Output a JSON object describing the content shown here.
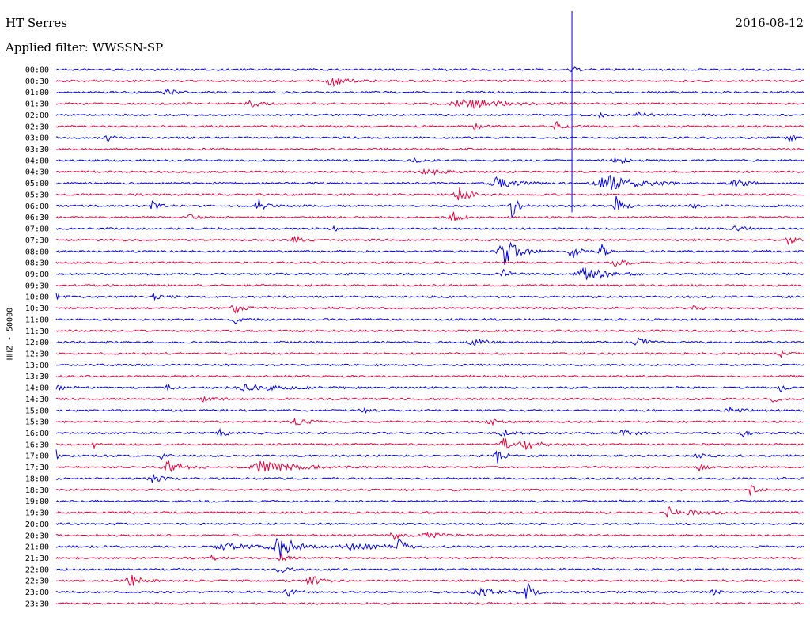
{
  "header": {
    "station": "HT Serres",
    "filter": "Applied filter: WWSSN-SP",
    "date": "2016-08-12"
  },
  "colors": {
    "blue": "#0000e6",
    "red": "#e8003c",
    "marker": "#0000e6"
  },
  "chart_data": {
    "type": "line",
    "title": "HT Serres",
    "subtitle": "Applied filter: WWSSN-SP",
    "date": "2016-08-12",
    "ylabel": "HHZ - 50000",
    "xlabel": "",
    "row_interval_minutes": 30,
    "row_labels": [
      "00:00",
      "00:30",
      "01:00",
      "01:30",
      "02:00",
      "02:30",
      "03:00",
      "03:30",
      "04:00",
      "04:30",
      "05:00",
      "05:30",
      "06:00",
      "06:30",
      "07:00",
      "07:30",
      "08:00",
      "08:30",
      "09:00",
      "09:30",
      "10:00",
      "10:30",
      "11:00",
      "11:30",
      "12:00",
      "12:30",
      "13:00",
      "13:30",
      "14:00",
      "14:30",
      "15:00",
      "15:30",
      "16:00",
      "16:30",
      "17:00",
      "17:30",
      "18:00",
      "18:30",
      "19:00",
      "19:30",
      "20:00",
      "20:30",
      "21:00",
      "21:30",
      "22:00",
      "22:30",
      "23:00",
      "23:30"
    ],
    "row_colors": [
      "blue",
      "red"
    ],
    "marker_fraction": 0.69,
    "marker_rows": [
      0,
      12
    ],
    "bursts": [
      {
        "row": 0,
        "pos": 0.69,
        "amp": 4,
        "width": 0.005
      },
      {
        "row": 1,
        "pos": 0.37,
        "amp": 7,
        "width": 0.012
      },
      {
        "row": 2,
        "pos": 0.15,
        "amp": 4,
        "width": 0.008
      },
      {
        "row": 3,
        "pos": 0.26,
        "amp": 4,
        "width": 0.01
      },
      {
        "row": 3,
        "pos": 0.55,
        "amp": 6,
        "width": 0.03
      },
      {
        "row": 4,
        "pos": 0.73,
        "amp": 3,
        "width": 0.01
      },
      {
        "row": 4,
        "pos": 0.78,
        "amp": 3,
        "width": 0.008
      },
      {
        "row": 5,
        "pos": 0.56,
        "amp": 4,
        "width": 0.006
      },
      {
        "row": 5,
        "pos": 0.67,
        "amp": 5,
        "width": 0.006
      },
      {
        "row": 6,
        "pos": 0.07,
        "amp": 3,
        "width": 0.006
      },
      {
        "row": 6,
        "pos": 0.98,
        "amp": 4,
        "width": 0.006
      },
      {
        "row": 8,
        "pos": 0.48,
        "amp": 3,
        "width": 0.006
      },
      {
        "row": 8,
        "pos": 0.75,
        "amp": 4,
        "width": 0.01
      },
      {
        "row": 9,
        "pos": 0.5,
        "amp": 3,
        "width": 0.02
      },
      {
        "row": 10,
        "pos": 0.59,
        "amp": 7,
        "width": 0.015
      },
      {
        "row": 10,
        "pos": 0.74,
        "amp": 10,
        "width": 0.025
      },
      {
        "row": 10,
        "pos": 0.91,
        "amp": 5,
        "width": 0.01
      },
      {
        "row": 11,
        "pos": 0.54,
        "amp": 9,
        "width": 0.01
      },
      {
        "row": 12,
        "pos": 0.13,
        "amp": 6,
        "width": 0.006
      },
      {
        "row": 12,
        "pos": 0.27,
        "amp": 10,
        "width": 0.006
      },
      {
        "row": 12,
        "pos": 0.61,
        "amp": 14,
        "width": 0.006
      },
      {
        "row": 12,
        "pos": 0.75,
        "amp": 12,
        "width": 0.006
      },
      {
        "row": 12,
        "pos": 0.85,
        "amp": 5,
        "width": 0.004
      },
      {
        "row": 13,
        "pos": 0.18,
        "amp": 4,
        "width": 0.006
      },
      {
        "row": 13,
        "pos": 0.53,
        "amp": 7,
        "width": 0.008
      },
      {
        "row": 14,
        "pos": 0.37,
        "amp": 4,
        "width": 0.005
      },
      {
        "row": 14,
        "pos": 0.91,
        "amp": 4,
        "width": 0.01
      },
      {
        "row": 15,
        "pos": 0.32,
        "amp": 6,
        "width": 0.006
      },
      {
        "row": 15,
        "pos": 0.98,
        "amp": 5,
        "width": 0.006
      },
      {
        "row": 16,
        "pos": 0.6,
        "amp": 20,
        "width": 0.012
      },
      {
        "row": 16,
        "pos": 0.69,
        "amp": 10,
        "width": 0.006
      },
      {
        "row": 16,
        "pos": 0.73,
        "amp": 8,
        "width": 0.006
      },
      {
        "row": 17,
        "pos": 0.75,
        "amp": 4,
        "width": 0.01
      },
      {
        "row": 18,
        "pos": 0.6,
        "amp": 6,
        "width": 0.006
      },
      {
        "row": 18,
        "pos": 0.71,
        "amp": 8,
        "width": 0.02
      },
      {
        "row": 20,
        "pos": 0.0,
        "amp": 4,
        "width": 0.005
      },
      {
        "row": 20,
        "pos": 0.13,
        "amp": 4,
        "width": 0.008
      },
      {
        "row": 21,
        "pos": 0.24,
        "amp": 6,
        "width": 0.008
      },
      {
        "row": 21,
        "pos": 0.85,
        "amp": 5,
        "width": 0.006
      },
      {
        "row": 22,
        "pos": 0.24,
        "amp": 4,
        "width": 0.006
      },
      {
        "row": 24,
        "pos": 0.56,
        "amp": 3,
        "width": 0.015
      },
      {
        "row": 24,
        "pos": 0.78,
        "amp": 5,
        "width": 0.01
      },
      {
        "row": 25,
        "pos": 0.97,
        "amp": 4,
        "width": 0.006
      },
      {
        "row": 28,
        "pos": 0.0,
        "amp": 4,
        "width": 0.01
      },
      {
        "row": 28,
        "pos": 0.15,
        "amp": 3,
        "width": 0.006
      },
      {
        "row": 28,
        "pos": 0.26,
        "amp": 4,
        "width": 0.03
      },
      {
        "row": 28,
        "pos": 0.97,
        "amp": 4,
        "width": 0.006
      },
      {
        "row": 29,
        "pos": 0.2,
        "amp": 3,
        "width": 0.01
      },
      {
        "row": 29,
        "pos": 0.96,
        "amp": 4,
        "width": 0.006
      },
      {
        "row": 30,
        "pos": 0.41,
        "amp": 4,
        "width": 0.006
      },
      {
        "row": 30,
        "pos": 0.9,
        "amp": 4,
        "width": 0.01
      },
      {
        "row": 31,
        "pos": 0.32,
        "amp": 5,
        "width": 0.01
      },
      {
        "row": 31,
        "pos": 0.58,
        "amp": 4,
        "width": 0.008
      },
      {
        "row": 32,
        "pos": 0.22,
        "amp": 5,
        "width": 0.006
      },
      {
        "row": 32,
        "pos": 0.6,
        "amp": 4,
        "width": 0.01
      },
      {
        "row": 32,
        "pos": 0.76,
        "amp": 4,
        "width": 0.01
      },
      {
        "row": 32,
        "pos": 0.92,
        "amp": 4,
        "width": 0.006
      },
      {
        "row": 33,
        "pos": 0.05,
        "amp": 4,
        "width": 0.004
      },
      {
        "row": 33,
        "pos": 0.6,
        "amp": 9,
        "width": 0.008
      },
      {
        "row": 33,
        "pos": 0.63,
        "amp": 5,
        "width": 0.015
      },
      {
        "row": 34,
        "pos": 0.0,
        "amp": 9,
        "width": 0.004
      },
      {
        "row": 34,
        "pos": 0.14,
        "amp": 4,
        "width": 0.006
      },
      {
        "row": 34,
        "pos": 0.59,
        "amp": 9,
        "width": 0.006
      },
      {
        "row": 34,
        "pos": 0.86,
        "amp": 4,
        "width": 0.008
      },
      {
        "row": 35,
        "pos": 0.15,
        "amp": 7,
        "width": 0.012
      },
      {
        "row": 35,
        "pos": 0.28,
        "amp": 8,
        "width": 0.025
      },
      {
        "row": 35,
        "pos": 0.86,
        "amp": 4,
        "width": 0.006
      },
      {
        "row": 36,
        "pos": 0.13,
        "amp": 5,
        "width": 0.008
      },
      {
        "row": 36,
        "pos": 0.97,
        "amp": 3,
        "width": 0.006
      },
      {
        "row": 37,
        "pos": 0.93,
        "amp": 7,
        "width": 0.006
      },
      {
        "row": 39,
        "pos": 0.82,
        "amp": 8,
        "width": 0.006
      },
      {
        "row": 39,
        "pos": 0.85,
        "amp": 3,
        "width": 0.02
      },
      {
        "row": 41,
        "pos": 0.45,
        "amp": 5,
        "width": 0.008
      },
      {
        "row": 41,
        "pos": 0.5,
        "amp": 3,
        "width": 0.015
      },
      {
        "row": 42,
        "pos": 0.23,
        "amp": 4,
        "width": 0.03
      },
      {
        "row": 42,
        "pos": 0.3,
        "amp": 13,
        "width": 0.015
      },
      {
        "row": 42,
        "pos": 0.4,
        "amp": 4,
        "width": 0.03
      },
      {
        "row": 42,
        "pos": 0.46,
        "amp": 10,
        "width": 0.006
      },
      {
        "row": 43,
        "pos": 0.21,
        "amp": 4,
        "width": 0.006
      },
      {
        "row": 43,
        "pos": 0.3,
        "amp": 5,
        "width": 0.008
      },
      {
        "row": 44,
        "pos": 0.3,
        "amp": 4,
        "width": 0.008
      },
      {
        "row": 45,
        "pos": 0.1,
        "amp": 9,
        "width": 0.008
      },
      {
        "row": 45,
        "pos": 0.34,
        "amp": 9,
        "width": 0.008
      },
      {
        "row": 46,
        "pos": 0.31,
        "amp": 7,
        "width": 0.006
      },
      {
        "row": 46,
        "pos": 0.57,
        "amp": 4,
        "width": 0.02
      },
      {
        "row": 46,
        "pos": 0.63,
        "amp": 12,
        "width": 0.006
      },
      {
        "row": 46,
        "pos": 0.88,
        "amp": 3,
        "width": 0.006
      }
    ]
  }
}
